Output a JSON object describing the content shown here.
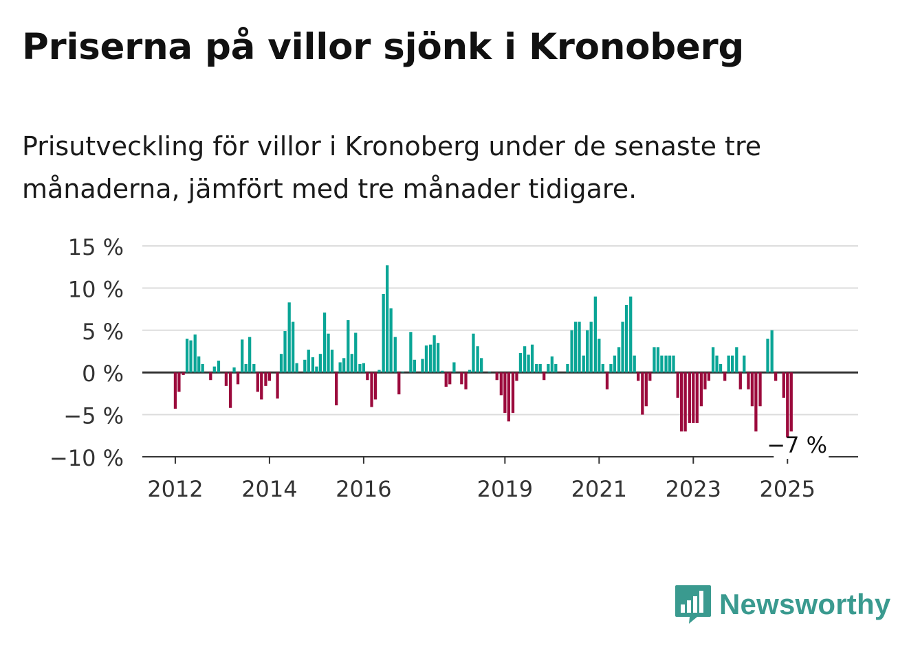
{
  "header": {
    "title": "Priserna på villor sjönk i Kronoberg",
    "subtitle": "Prisutveckling för villor i Kronoberg under de senaste tre månaderna, jämfört med tre månader tidigare."
  },
  "brand": {
    "name": "Newsworthy",
    "color": "#3a9a8f",
    "icon": "bar-chart-speech-bubble-icon"
  },
  "chart_data": {
    "type": "bar",
    "title": "",
    "xlabel": "",
    "ylabel": "",
    "ylim": [
      -10,
      15
    ],
    "yticks": [
      15,
      10,
      5,
      0,
      -5,
      -10
    ],
    "ytick_labels": [
      "15 %",
      "10 %",
      "5 %",
      "0 %",
      "−5 %",
      "−10 %"
    ],
    "xticks": [
      2012,
      2014,
      2016,
      2019,
      2021,
      2023,
      2025
    ],
    "xtick_labels": [
      "2012",
      "2014",
      "2016",
      "2019",
      "2021",
      "2023",
      "2025"
    ],
    "x_range": [
      2011.3,
      2026.5
    ],
    "grid": true,
    "colors": {
      "positive": "#0aa596",
      "negative": "#9b0a3c",
      "grid": "#dddddd",
      "zero": "#333333"
    },
    "annotation": {
      "text": "−7 %",
      "x": 2025.0,
      "y": -7
    },
    "series": [
      {
        "x": [
          2012.0,
          2012.08,
          2012.17,
          2012.25,
          2012.33,
          2012.42,
          2012.5,
          2012.58,
          2012.67,
          2012.75,
          2012.83,
          2012.92,
          2013.0,
          2013.08,
          2013.17,
          2013.25,
          2013.33,
          2013.42,
          2013.5,
          2013.58,
          2013.67,
          2013.75,
          2013.83,
          2013.92,
          2014.0,
          2014.08,
          2014.17,
          2014.25,
          2014.33,
          2014.42,
          2014.5,
          2014.58,
          2014.67,
          2014.75,
          2014.83,
          2014.92,
          2015.0,
          2015.08,
          2015.17,
          2015.25,
          2015.33,
          2015.42,
          2015.5,
          2015.58,
          2015.67,
          2015.75,
          2015.83,
          2015.92,
          2016.0,
          2016.08,
          2016.17,
          2016.25,
          2016.33,
          2016.42,
          2016.5,
          2016.58,
          2016.67,
          2016.75,
          2016.83,
          2016.92,
          2017.0,
          2017.08,
          2017.17,
          2017.25,
          2017.33,
          2017.42,
          2017.5,
          2017.58,
          2017.67,
          2017.75,
          2017.83,
          2017.92,
          2018.0,
          2018.08,
          2018.17,
          2018.25,
          2018.33,
          2018.42,
          2018.5,
          2018.58,
          2018.67,
          2018.75,
          2018.83,
          2018.92,
          2019.0,
          2019.08,
          2019.17,
          2019.25,
          2019.33,
          2019.42,
          2019.5,
          2019.58,
          2019.67,
          2019.75,
          2019.83,
          2019.92,
          2020.0,
          2020.08,
          2020.17,
          2020.25,
          2020.33,
          2020.42,
          2020.5,
          2020.58,
          2020.67,
          2020.75,
          2020.83,
          2020.92,
          2021.0,
          2021.08,
          2021.17,
          2021.25,
          2021.33,
          2021.42,
          2021.5,
          2021.58,
          2021.67,
          2021.75,
          2021.83,
          2021.92,
          2022.0,
          2022.08,
          2022.17,
          2022.25,
          2022.33,
          2022.42,
          2022.5,
          2022.58,
          2022.67,
          2022.75,
          2022.83,
          2022.92,
          2023.0,
          2023.08,
          2023.17,
          2023.25,
          2023.33,
          2023.42,
          2023.5,
          2023.58,
          2023.67,
          2023.75,
          2023.83,
          2023.92,
          2024.0,
          2024.08,
          2024.17,
          2024.25,
          2024.33,
          2024.42,
          2024.5,
          2024.58,
          2024.67,
          2024.75,
          2024.83,
          2024.92
        ],
        "values": [
          -4.3,
          -2.3,
          -0.3,
          4.0,
          3.8,
          4.5,
          1.9,
          1.0,
          0.0,
          -0.9,
          0.7,
          1.4,
          0.0,
          -1.6,
          -4.2,
          0.6,
          -1.4,
          3.9,
          1.0,
          4.2,
          1.0,
          -2.3,
          -3.2,
          -1.6,
          -1.0,
          0.0,
          -3.1,
          2.2,
          4.9,
          8.3,
          6.0,
          1.1,
          0.0,
          1.5,
          2.7,
          1.8,
          0.7,
          2.2,
          7.1,
          4.6,
          2.7,
          -3.9,
          1.2,
          1.7,
          6.2,
          2.2,
          4.7,
          1.0,
          1.1,
          -0.9,
          -4.1,
          -3.2,
          0.3,
          9.3,
          12.7,
          7.6,
          4.2,
          -2.6,
          0.1,
          0.0,
          4.8,
          1.5,
          0.0,
          1.6,
          3.2,
          3.3,
          4.4,
          3.5,
          0.2,
          -1.7,
          -1.4,
          1.2,
          0.0,
          -1.4,
          -2.0,
          0.3,
          4.6,
          3.1,
          1.7,
          0.0,
          0.1,
          0.0,
          -0.9,
          -2.7,
          -4.8,
          -5.8,
          -4.8,
          -1.0,
          2.3,
          3.1,
          2.1,
          3.3,
          1.0,
          1.0,
          -0.9,
          1.0,
          1.9,
          1.0,
          0.0,
          0.0,
          1.0,
          5.0,
          6.0,
          6.0,
          2.0,
          5.0,
          6.0,
          9.0,
          4.0,
          1.0,
          -2.0,
          1.0,
          2.0,
          3.0,
          6.0,
          8.0,
          9.0,
          2.0,
          -1.0,
          -5.0,
          -4.0,
          -1.0,
          3.0,
          3.0,
          2.0,
          2.0,
          2.0,
          2.0,
          -3.0,
          -7.0,
          -7.0,
          -6.0,
          -6.0,
          -6.0,
          -4.0,
          -2.0,
          -1.0,
          3.0,
          2.0,
          1.0,
          -1.0,
          2.0,
          2.0,
          3.0,
          -2.0,
          2.0,
          -2.0,
          -4.0,
          -7.0,
          -4.0,
          0.0,
          4.0,
          5.0,
          -1.0,
          0.0,
          -3.0
        ]
      },
      {
        "x": [
          2025.0,
          2025.08
        ],
        "values": [
          -7.7,
          -7.0
        ]
      }
    ]
  }
}
